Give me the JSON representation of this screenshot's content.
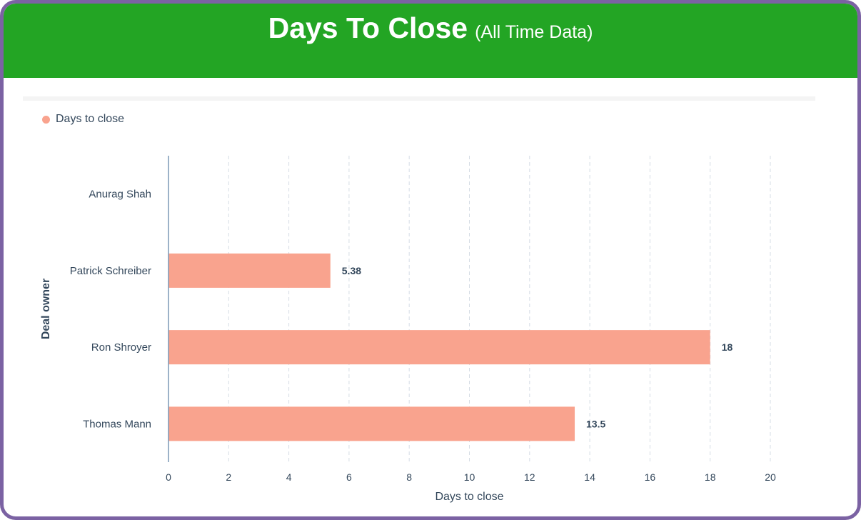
{
  "header": {
    "title": "Days To Close",
    "subtitle": "(All Time Data)"
  },
  "colors": {
    "header_bg": "#23a524",
    "frame": "#7b62a3",
    "bar": "#f9a38e",
    "text": "#33475b"
  },
  "chart_data": {
    "type": "bar",
    "orientation": "horizontal",
    "categories": [
      "Anurag Shah",
      "Patrick Schreiber",
      "Ron Shroyer",
      "Thomas Mann"
    ],
    "series": [
      {
        "name": "Days to close",
        "values": [
          null,
          5.38,
          18,
          13.5
        ]
      }
    ],
    "data_labels": [
      "",
      "5.38",
      "18",
      "13.5"
    ],
    "xlabel": "Days to close",
    "ylabel": "Deal owner",
    "xlim": [
      0,
      20
    ],
    "xticks": [
      0,
      2,
      4,
      6,
      8,
      10,
      12,
      14,
      16,
      18,
      20
    ],
    "grid": "vertical-dashed",
    "legend": "top-left"
  }
}
